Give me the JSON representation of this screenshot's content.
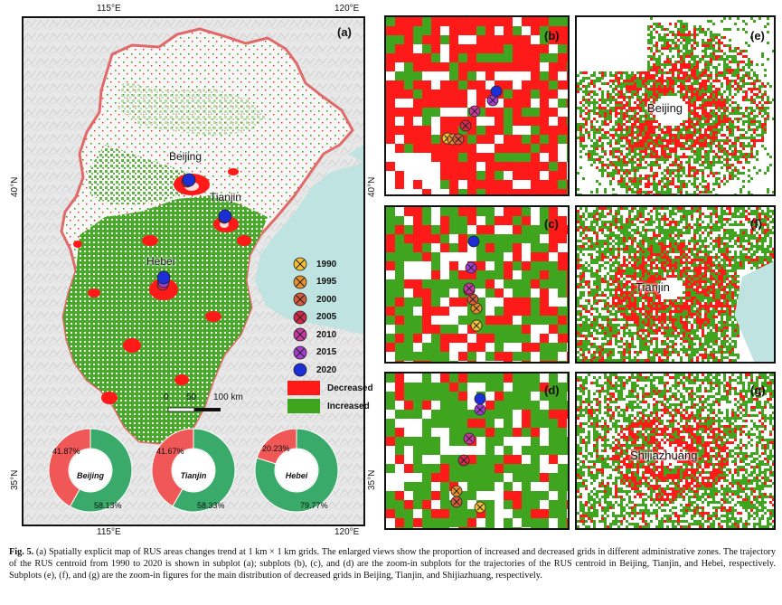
{
  "main_map": {
    "panel_label": "(a)",
    "lon_ticks": [
      "115°E",
      "120°E"
    ],
    "lat_ticks": [
      "40°N",
      "35°N"
    ],
    "cities": [
      "Beijing",
      "Tianjin",
      "Hebei"
    ],
    "scale_bar": {
      "zero": "0",
      "mid": "50",
      "end": "100 km"
    },
    "years": [
      "1990",
      "1995",
      "2000",
      "2005",
      "2010",
      "2015",
      "2020"
    ],
    "year_colors": [
      "#f2c037",
      "#e8902e",
      "#d65a3c",
      "#d42a4a",
      "#c93aa0",
      "#a33ccf",
      "#1c2ed6"
    ],
    "land_change": {
      "decreased": "Decreased",
      "increased": "Increased",
      "decreased_color": "#ff1a1a",
      "increased_color": "#3fa51f"
    },
    "donuts": [
      {
        "name": "Beijing",
        "decreased": "41.87%",
        "increased": "58.13%",
        "decreased_value": 41.87
      },
      {
        "name": "Tianjin",
        "decreased": "41.67%",
        "increased": "58.33%",
        "decreased_value": 41.67
      },
      {
        "name": "Hebei",
        "decreased": "20.23%",
        "increased": "79.77%",
        "decreased_value": 20.23
      }
    ],
    "donut_colors": {
      "decreased": "#f05858",
      "increased": "#3aaa6a"
    }
  },
  "subplots": {
    "b": "(b)",
    "c": "(c)",
    "d": "(d)",
    "e": "(e)",
    "f": "(f)",
    "g": "(g)",
    "e_city": "Beijing",
    "f_city": "Tianjin",
    "g_city": "Shijiazhuang"
  },
  "caption": {
    "lead": "Fig. 5.",
    "text": " (a) Spatially explicit map of RUS areas changes trend at 1 km × 1 km grids. The enlarged views show the proportion of increased and decreased grids in different administrative zones. The trajectory of the RUS centroid from 1990 to 2020 is shown in subplot (a); subplots (b), (c), and (d) are the zoom-in subplots for the trajectories of the RUS centroid in Beijing, Tianjin, and Hebei, respectively. Subplots (e), (f), and (g) are the zoom-in figures for the main distribution of decreased grids in Beijing, Tianjin, and Shijiazhuang, respectively."
  }
}
